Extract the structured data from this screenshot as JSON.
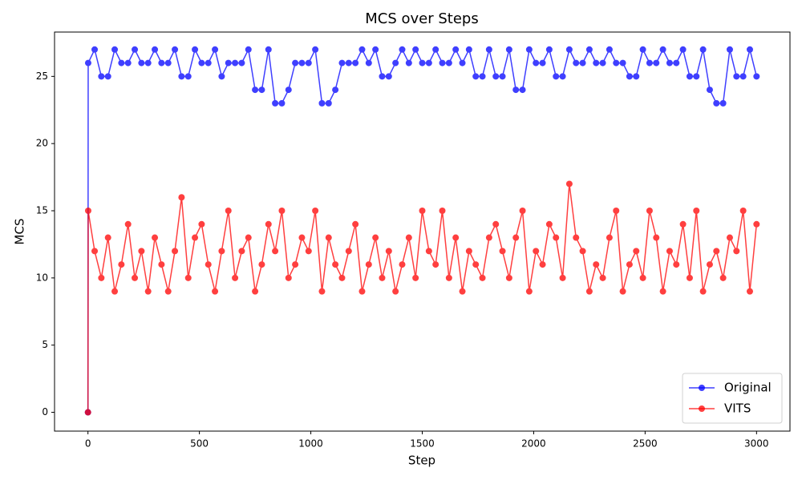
{
  "chart_data": {
    "type": "line",
    "title": "MCS over Steps",
    "x_label": "Step",
    "y_label": "MCS",
    "x": [
      0,
      1,
      30,
      60,
      90,
      120,
      150,
      180,
      210,
      240,
      270,
      300,
      330,
      360,
      390,
      420,
      450,
      480,
      510,
      540,
      570,
      600,
      630,
      660,
      690,
      720,
      750,
      780,
      810,
      840,
      870,
      900,
      930,
      960,
      990,
      1020,
      1050,
      1080,
      1110,
      1140,
      1170,
      1200,
      1230,
      1260,
      1290,
      1320,
      1350,
      1380,
      1410,
      1440,
      1470,
      1500,
      1530,
      1560,
      1590,
      1620,
      1650,
      1680,
      1710,
      1740,
      1770,
      1800,
      1830,
      1860,
      1890,
      1920,
      1950,
      1980,
      2010,
      2040,
      2070,
      2100,
      2130,
      2160,
      2190,
      2220,
      2250,
      2280,
      2310,
      2340,
      2370,
      2400,
      2430,
      2460,
      2490,
      2520,
      2550,
      2580,
      2610,
      2640,
      2670,
      2700,
      2730,
      2760,
      2790,
      2820,
      2850,
      2880,
      2910,
      2940,
      2970,
      3000
    ],
    "series": [
      {
        "name": "Original",
        "color": "#0000ff",
        "values": [
          0,
          26,
          27,
          25,
          25,
          27,
          26,
          26,
          27,
          26,
          26,
          27,
          26,
          26,
          27,
          25,
          25,
          27,
          26,
          26,
          27,
          25,
          26,
          26,
          26,
          27,
          24,
          24,
          27,
          23,
          23,
          24,
          26,
          26,
          26,
          27,
          23,
          23,
          24,
          26,
          26,
          26,
          27,
          26,
          27,
          25,
          25,
          26,
          27,
          26,
          27,
          26,
          26,
          27,
          26,
          26,
          27,
          26,
          27,
          25,
          25,
          27,
          25,
          25,
          27,
          24,
          24,
          27,
          26,
          26,
          27,
          25,
          25,
          27,
          26,
          26,
          27,
          26,
          26,
          27,
          26,
          26,
          25,
          25,
          27,
          26,
          26,
          27,
          26,
          26,
          27,
          25,
          25,
          27,
          24,
          23,
          23,
          27,
          25,
          25,
          27,
          25
        ]
      },
      {
        "name": "VITS",
        "color": "#ff0000",
        "values": [
          0,
          15,
          12,
          10,
          13,
          9,
          11,
          14,
          10,
          12,
          9,
          13,
          11,
          9,
          12,
          16,
          10,
          13,
          14,
          11,
          9,
          12,
          15,
          10,
          12,
          13,
          9,
          11,
          14,
          12,
          15,
          10,
          11,
          13,
          12,
          15,
          9,
          13,
          11,
          10,
          12,
          14,
          9,
          11,
          13,
          10,
          12,
          9,
          11,
          13,
          10,
          15,
          12,
          11,
          15,
          10,
          13,
          9,
          12,
          11,
          10,
          13,
          14,
          12,
          10,
          13,
          15,
          9,
          12,
          11,
          14,
          13,
          10,
          17,
          13,
          12,
          9,
          11,
          10,
          13,
          15,
          9,
          11,
          12,
          10,
          15,
          13,
          9,
          12,
          11,
          14,
          10,
          15,
          9,
          11,
          12,
          10,
          13,
          12,
          15,
          9,
          14
        ]
      }
    ],
    "xlim": [
      -150,
      3150
    ],
    "xticks": [
      0,
      500,
      1000,
      1500,
      2000,
      2500,
      3000
    ],
    "ylim": [
      -1.4,
      28.3
    ],
    "yticks": [
      0,
      5,
      10,
      15,
      20,
      25
    ],
    "legend": "lower right"
  }
}
